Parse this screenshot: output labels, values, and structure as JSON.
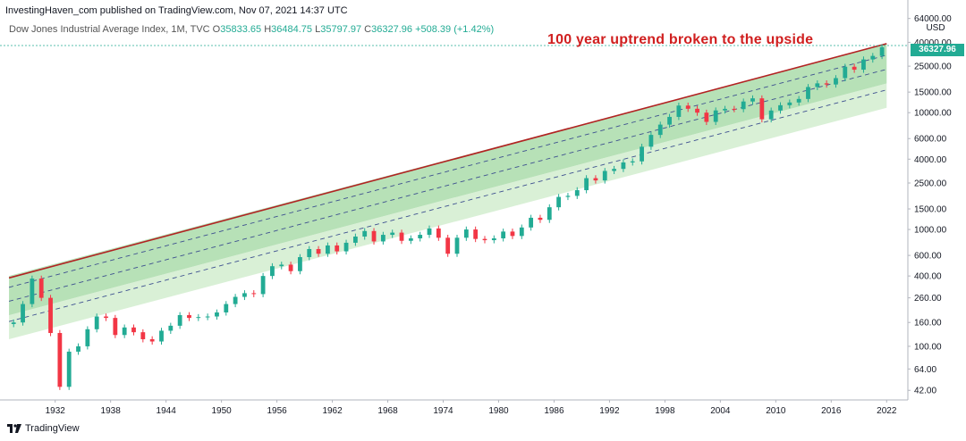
{
  "header": {
    "text": "InvestingHaven_com published on TradingView.com, Nov 07, 2021 14:37 UTC"
  },
  "legend": {
    "symbol": "Dow Jones Industrial Average Index, 1M, TVC",
    "open_label": "O",
    "open": "35833.65",
    "high_label": "H",
    "high": "36484.75",
    "low_label": "L",
    "low": "35797.97",
    "close_label": "C",
    "close": "36327.96",
    "change": "+508.39 (+1.42%)"
  },
  "annotation": "100 year uptrend broken to the upside",
  "price_badge": "36327.96",
  "footer": {
    "brand": "TradingView"
  },
  "colors": {
    "up": "#22ab94",
    "down": "#f23645",
    "trendline": "#b22222",
    "channel_upper": "#7cc97c",
    "channel_lower": "#c9e9c4",
    "dashed": "#3d4f8f"
  },
  "chart_data": {
    "type": "candlestick",
    "title": "",
    "xlabel": "",
    "ylabel": "",
    "y_scale": "log",
    "y_unit": "USD",
    "y_ticks": [
      42,
      64,
      100,
      160,
      260,
      400,
      600,
      1000,
      1500,
      2500,
      4000,
      6000,
      10000,
      15000,
      25000,
      40000,
      64000
    ],
    "y_tick_labels": [
      "42.00",
      "64.00",
      "100.00",
      "160.00",
      "260.00",
      "400.00",
      "600.00",
      "1000.00",
      "1500.00",
      "2500.00",
      "4000.00",
      "6000.00",
      "10000.00",
      "15000.00",
      "25000.00",
      "40000.00",
      "64000.00"
    ],
    "x_ticks": [
      1932,
      1938,
      1944,
      1950,
      1956,
      1962,
      1968,
      1974,
      1980,
      1986,
      1992,
      1998,
      2004,
      2010,
      2016,
      2022
    ],
    "xlim": [
      1926.8,
      2024.2
    ],
    "ylim": [
      36,
      72000
    ],
    "series": [
      {
        "name": "price",
        "points": [
          [
            1927,
            160
          ],
          [
            1928,
            230
          ],
          [
            1929,
            380
          ],
          [
            1930,
            260
          ],
          [
            1931,
            130
          ],
          [
            1932,
            45
          ],
          [
            1933,
            90
          ],
          [
            1934,
            100
          ],
          [
            1935,
            140
          ],
          [
            1936,
            180
          ],
          [
            1937,
            175
          ],
          [
            1938,
            125
          ],
          [
            1939,
            145
          ],
          [
            1940,
            132
          ],
          [
            1941,
            115
          ],
          [
            1942,
            110
          ],
          [
            1943,
            136
          ],
          [
            1944,
            150
          ],
          [
            1945,
            185
          ],
          [
            1946,
            175
          ],
          [
            1947,
            178
          ],
          [
            1948,
            180
          ],
          [
            1949,
            195
          ],
          [
            1950,
            230
          ],
          [
            1951,
            265
          ],
          [
            1952,
            285
          ],
          [
            1953,
            280
          ],
          [
            1954,
            400
          ],
          [
            1955,
            485
          ],
          [
            1956,
            500
          ],
          [
            1957,
            440
          ],
          [
            1958,
            580
          ],
          [
            1959,
            680
          ],
          [
            1960,
            620
          ],
          [
            1961,
            730
          ],
          [
            1962,
            650
          ],
          [
            1963,
            770
          ],
          [
            1964,
            870
          ],
          [
            1965,
            970
          ],
          [
            1966,
            790
          ],
          [
            1967,
            900
          ],
          [
            1968,
            940
          ],
          [
            1969,
            800
          ],
          [
            1970,
            840
          ],
          [
            1971,
            900
          ],
          [
            1972,
            1020
          ],
          [
            1973,
            850
          ],
          [
            1974,
            620
          ],
          [
            1975,
            850
          ],
          [
            1976,
            1000
          ],
          [
            1977,
            830
          ],
          [
            1978,
            810
          ],
          [
            1979,
            840
          ],
          [
            1980,
            960
          ],
          [
            1981,
            880
          ],
          [
            1982,
            1040
          ],
          [
            1983,
            1260
          ],
          [
            1984,
            1210
          ],
          [
            1985,
            1550
          ],
          [
            1986,
            1900
          ],
          [
            1987,
            1940
          ],
          [
            1988,
            2170
          ],
          [
            1989,
            2750
          ],
          [
            1990,
            2630
          ],
          [
            1991,
            3170
          ],
          [
            1992,
            3300
          ],
          [
            1993,
            3750
          ],
          [
            1994,
            3830
          ],
          [
            1995,
            5110
          ],
          [
            1996,
            6450
          ],
          [
            1997,
            7900
          ],
          [
            1998,
            9200
          ],
          [
            1999,
            11500
          ],
          [
            2000,
            10800
          ],
          [
            2001,
            10000
          ],
          [
            2002,
            8340
          ],
          [
            2003,
            10450
          ],
          [
            2004,
            10780
          ],
          [
            2005,
            10720
          ],
          [
            2006,
            12460
          ],
          [
            2007,
            13260
          ],
          [
            2008,
            8780
          ],
          [
            2009,
            10430
          ],
          [
            2010,
            11580
          ],
          [
            2011,
            12220
          ],
          [
            2012,
            13100
          ],
          [
            2013,
            16580
          ],
          [
            2014,
            17820
          ],
          [
            2015,
            17420
          ],
          [
            2016,
            19760
          ],
          [
            2017,
            24720
          ],
          [
            2018,
            23330
          ],
          [
            2019,
            28540
          ],
          [
            2020,
            30600
          ],
          [
            2021,
            36328
          ]
        ]
      },
      {
        "name": "channel_top",
        "points": [
          [
            1927,
            400
          ],
          [
            2022,
            39000
          ]
        ]
      },
      {
        "name": "channel_bottom",
        "points": [
          [
            1927,
            115
          ],
          [
            2022,
            11000
          ]
        ]
      },
      {
        "name": "trendline",
        "points": [
          [
            1927,
            385
          ],
          [
            2022,
            39000
          ]
        ]
      }
    ]
  }
}
